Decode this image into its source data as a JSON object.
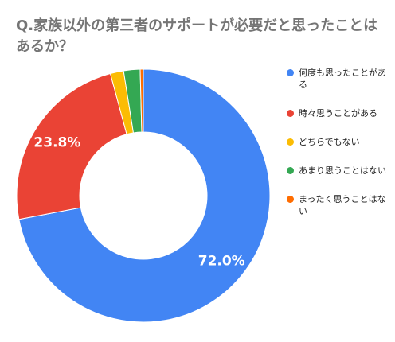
{
  "chart_data": {
    "type": "pie",
    "donut": true,
    "title": "Q.家族以外の第三者のサポートが必要だと思ったことはあるか？",
    "categories": [
      "何度も思ったことがある",
      "時々思うことがある",
      "どちらでもない",
      "あまり思うことはない",
      "まったく思うことはない"
    ],
    "values": [
      72.0,
      23.8,
      1.7,
      2.1,
      0.4
    ],
    "data_labels": [
      "72.0%",
      "23.8%",
      "",
      "",
      ""
    ],
    "colors": [
      "#4285f4",
      "#ea4335",
      "#fbbc04",
      "#34a853",
      "#ff6d01"
    ],
    "legend_position": "right"
  }
}
